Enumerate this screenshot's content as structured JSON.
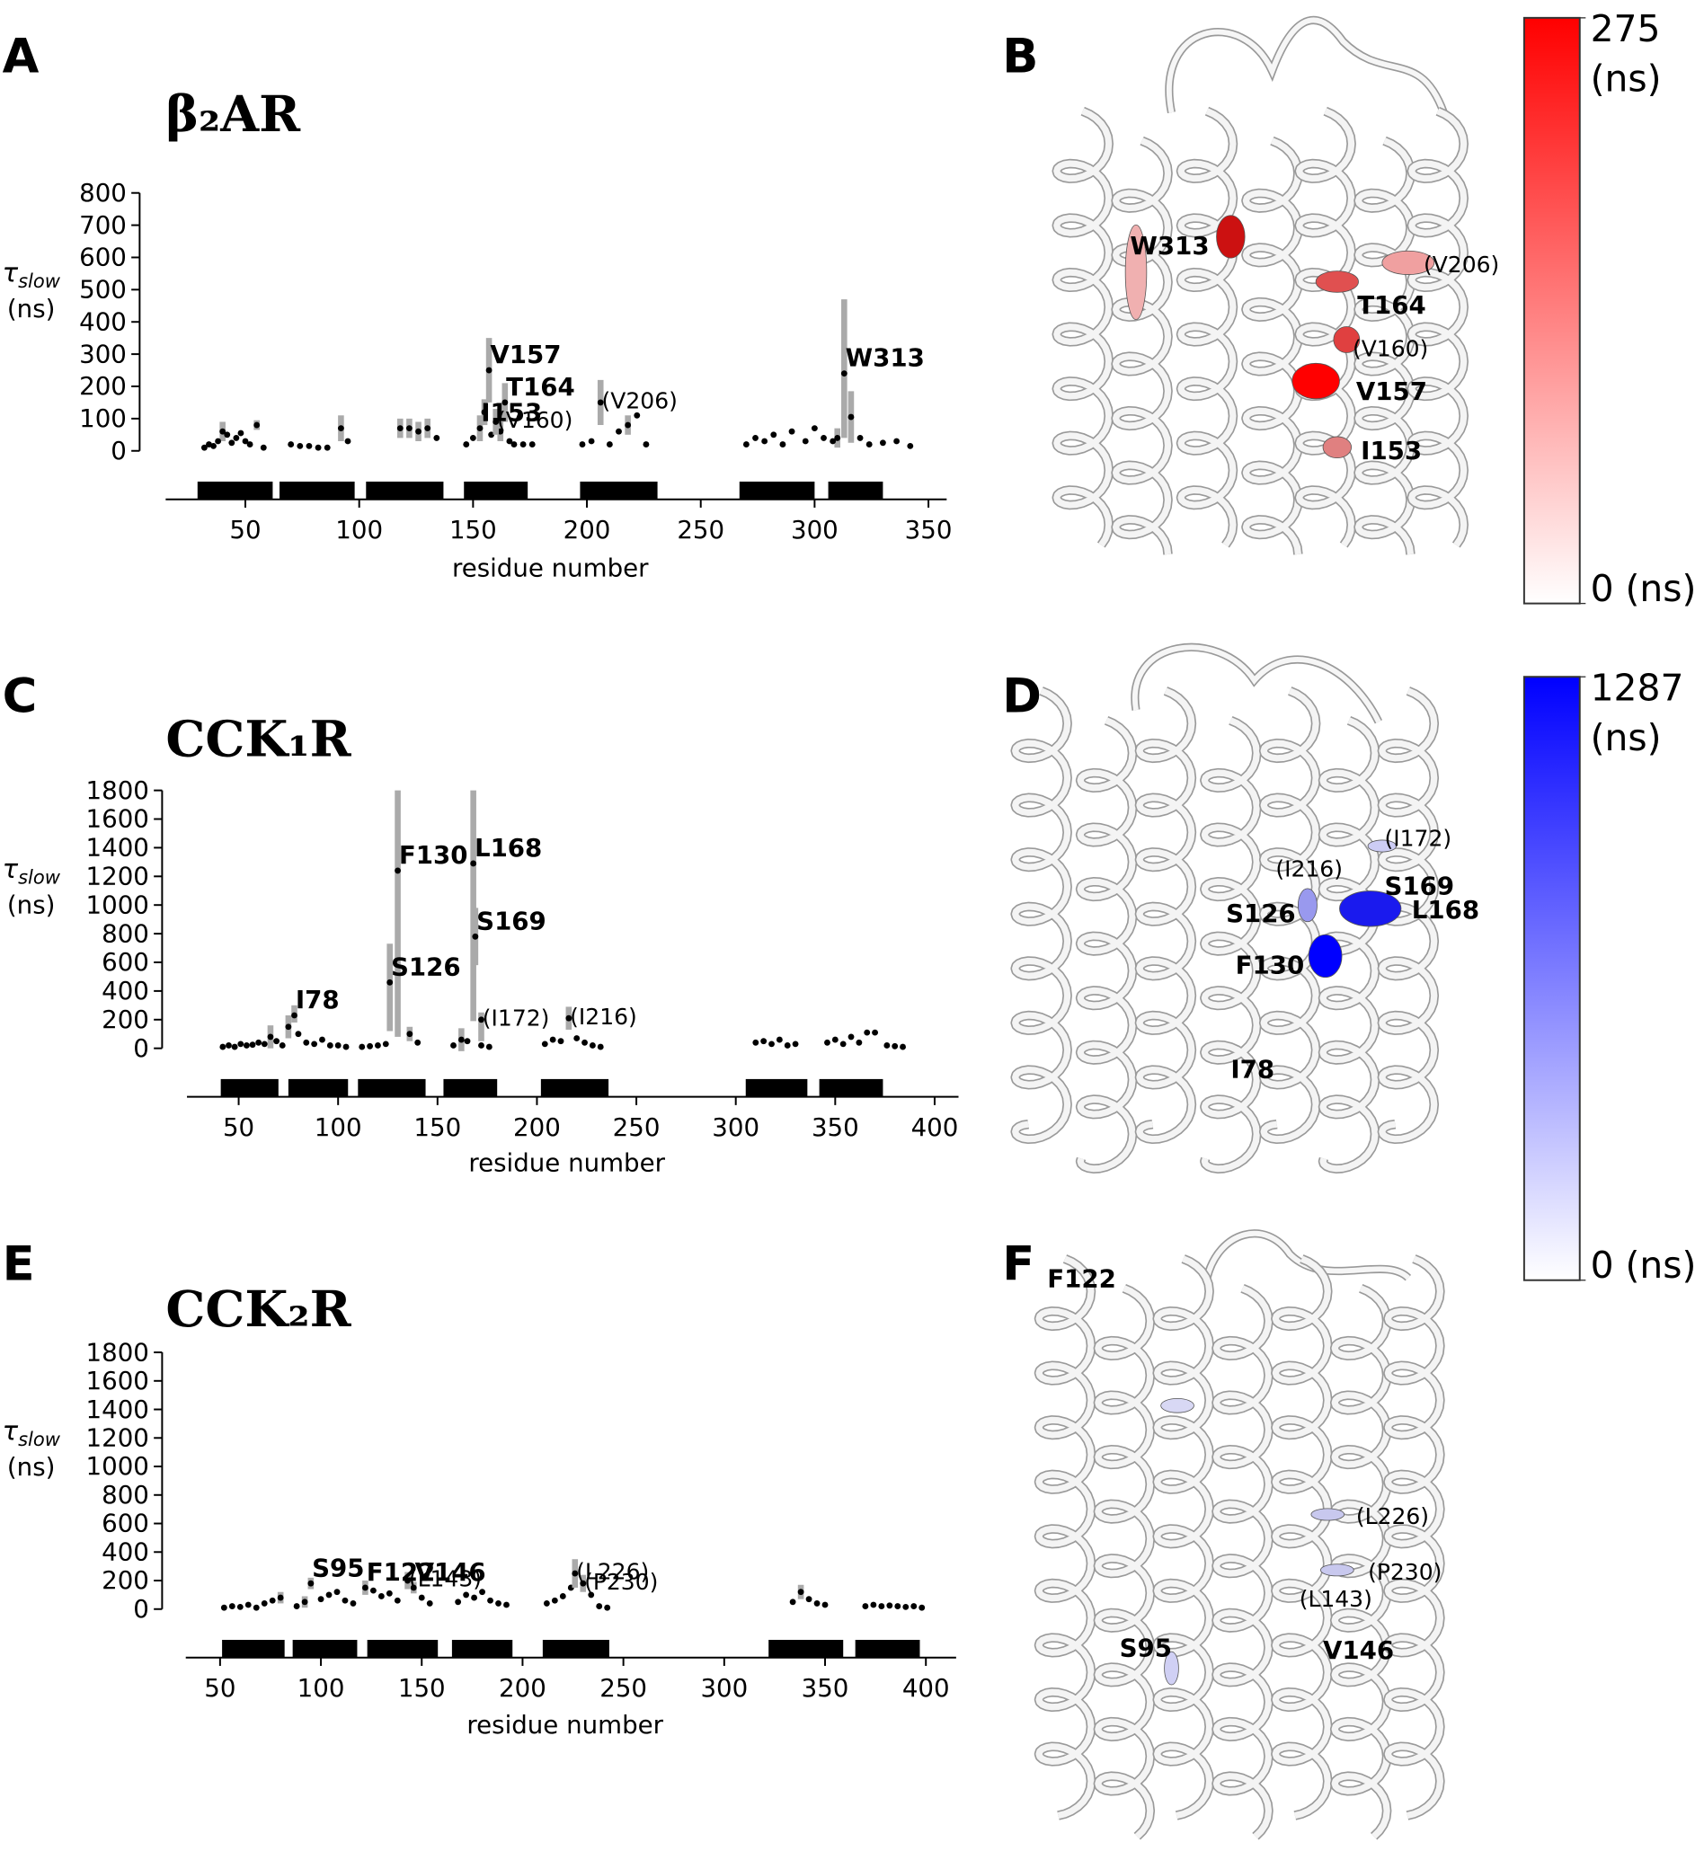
{
  "panels": [
    "A",
    "B",
    "C",
    "D",
    "E",
    "F"
  ],
  "chart_data": [
    {
      "type": "scatter",
      "title": "β₂AR",
      "ylabel_symbol": "τ",
      "ylabel_subscript": "slow",
      "ylabel_unit": "(ns)",
      "xlabel": "residue number",
      "xlim": [
        15,
        358
      ],
      "xticks": [
        50,
        100,
        150,
        200,
        250,
        300,
        350
      ],
      "ylim": [
        0,
        800
      ],
      "yticks": [
        0,
        100,
        200,
        300,
        400,
        500,
        600,
        700,
        800
      ],
      "color": "#000000",
      "error_color": "#aaaaaa",
      "helices": [
        [
          29,
          62
        ],
        [
          65,
          98
        ],
        [
          103,
          137
        ],
        [
          146,
          174
        ],
        [
          197,
          231
        ],
        [
          267,
          300
        ],
        [
          306,
          330
        ]
      ],
      "background": {
        "x": [
          32,
          34,
          36,
          38,
          40,
          42,
          44,
          46,
          48,
          50,
          52,
          55,
          58,
          70,
          74,
          78,
          82,
          86,
          92,
          95,
          118,
          122,
          126,
          130,
          134,
          147,
          150,
          155,
          158,
          162,
          166,
          168,
          172,
          176,
          198,
          202,
          210,
          214,
          218,
          222,
          226,
          270,
          274,
          278,
          282,
          286,
          290,
          296,
          300,
          304,
          308,
          310,
          316,
          320,
          324,
          330,
          336,
          342
        ],
        "y": [
          10,
          20,
          15,
          30,
          60,
          50,
          25,
          40,
          55,
          30,
          20,
          80,
          10,
          20,
          15,
          15,
          10,
          10,
          70,
          30,
          70,
          70,
          60,
          70,
          40,
          20,
          40,
          120,
          50,
          60,
          30,
          20,
          20,
          20,
          20,
          30,
          20,
          60,
          80,
          110,
          20,
          20,
          40,
          30,
          50,
          20,
          60,
          30,
          70,
          40,
          30,
          40,
          105,
          40,
          20,
          25,
          30,
          15
        ],
        "yerr": [
          0,
          0,
          0,
          0,
          30,
          0,
          0,
          0,
          0,
          0,
          0,
          15,
          0,
          0,
          0,
          0,
          0,
          0,
          40,
          0,
          30,
          30,
          30,
          30,
          0,
          0,
          0,
          40,
          0,
          30,
          0,
          0,
          0,
          0,
          0,
          0,
          0,
          0,
          30,
          0,
          0,
          0,
          0,
          0,
          0,
          0,
          0,
          0,
          0,
          0,
          0,
          30,
          80,
          0,
          0,
          0,
          0,
          0
        ]
      },
      "highlighted": {
        "x": [
          153,
          157,
          160,
          164,
          206,
          313
        ],
        "y": [
          70,
          250,
          90,
          150,
          150,
          240
        ],
        "yerr_low": [
          40,
          100,
          40,
          60,
          70,
          200
        ],
        "yerr_high": [
          40,
          100,
          40,
          60,
          70,
          230
        ],
        "labels": [
          "I153",
          "V157",
          "(V160)",
          "T164",
          "(V206)",
          "W313"
        ]
      }
    },
    {
      "type": "scatter",
      "title": "CCK₁R",
      "ylabel_symbol": "τ",
      "ylabel_subscript": "slow",
      "ylabel_unit": "(ns)",
      "xlabel": "residue number",
      "xlim": [
        24,
        412
      ],
      "xticks": [
        50,
        100,
        150,
        200,
        250,
        300,
        350,
        400
      ],
      "ylim": [
        0,
        1800
      ],
      "yticks": [
        0,
        200,
        400,
        600,
        800,
        1000,
        1200,
        1400,
        1600,
        1800
      ],
      "color": "#000000",
      "error_color": "#aaaaaa",
      "helices": [
        [
          41,
          70
        ],
        [
          75,
          105
        ],
        [
          110,
          144
        ],
        [
          153,
          180
        ],
        [
          202,
          236
        ],
        [
          305,
          336
        ],
        [
          342,
          374
        ]
      ],
      "background": {
        "x": [
          42,
          45,
          48,
          51,
          54,
          57,
          60,
          63,
          66,
          69,
          72,
          75,
          80,
          84,
          88,
          92,
          96,
          100,
          104,
          112,
          116,
          120,
          124,
          136,
          140,
          158,
          162,
          165,
          172,
          176,
          204,
          208,
          212,
          220,
          224,
          228,
          232,
          310,
          314,
          318,
          322,
          326,
          330,
          346,
          350,
          354,
          358,
          362,
          366,
          370,
          376,
          380,
          384
        ],
        "y": [
          10,
          20,
          10,
          30,
          20,
          25,
          40,
          30,
          80,
          50,
          20,
          150,
          100,
          40,
          30,
          60,
          20,
          20,
          10,
          10,
          15,
          20,
          30,
          100,
          40,
          20,
          60,
          50,
          20,
          10,
          30,
          60,
          50,
          70,
          40,
          20,
          10,
          40,
          50,
          30,
          60,
          20,
          30,
          40,
          60,
          30,
          80,
          40,
          110,
          110,
          20,
          15,
          10
        ],
        "yerr": [
          0,
          0,
          0,
          0,
          0,
          0,
          0,
          0,
          80,
          0,
          0,
          80,
          0,
          0,
          0,
          0,
          0,
          0,
          0,
          0,
          0,
          0,
          0,
          50,
          0,
          0,
          80,
          0,
          0,
          0,
          0,
          0,
          0,
          0,
          0,
          0,
          0,
          0,
          0,
          0,
          0,
          0,
          0,
          0,
          0,
          0,
          0,
          0,
          0,
          0,
          0,
          0,
          0
        ]
      },
      "highlighted": {
        "x": [
          78,
          126,
          130,
          168,
          169,
          172,
          216
        ],
        "y": [
          230,
          460,
          1240,
          1290,
          780,
          200,
          210
        ],
        "yerr_low": [
          50,
          340,
          1160,
          1100,
          200,
          150,
          80
        ],
        "yerr_high": [
          70,
          270,
          560,
          510,
          200,
          50,
          80
        ],
        "labels": [
          "I78",
          "S126",
          "F130",
          "L168",
          "S169",
          "(I172)",
          "(I216)"
        ]
      }
    },
    {
      "type": "scatter",
      "title": "CCK₂R",
      "ylabel_symbol": "τ",
      "ylabel_subscript": "slow",
      "ylabel_unit": "(ns)",
      "xlabel": "residue number",
      "xlim": [
        33,
        415
      ],
      "xticks": [
        50,
        100,
        150,
        200,
        250,
        300,
        350,
        400
      ],
      "ylim": [
        0,
        1800
      ],
      "yticks": [
        0,
        200,
        400,
        600,
        800,
        1000,
        1200,
        1400,
        1600,
        1800
      ],
      "color": "#000000",
      "error_color": "#aaaaaa",
      "helices": [
        [
          51,
          82
        ],
        [
          86,
          118
        ],
        [
          123,
          158
        ],
        [
          165,
          195
        ],
        [
          210,
          243
        ],
        [
          322,
          359
        ],
        [
          365,
          397
        ]
      ],
      "background": {
        "x": [
          52,
          56,
          60,
          64,
          68,
          72,
          76,
          80,
          88,
          92,
          100,
          104,
          108,
          112,
          116,
          126,
          130,
          134,
          138,
          150,
          154,
          168,
          172,
          176,
          180,
          184,
          188,
          192,
          212,
          216,
          220,
          224,
          234,
          238,
          242,
          334,
          338,
          342,
          346,
          350,
          370,
          374,
          378,
          382,
          386,
          390,
          394,
          398
        ],
        "y": [
          10,
          20,
          15,
          30,
          10,
          40,
          60,
          80,
          20,
          50,
          70,
          100,
          120,
          60,
          40,
          130,
          90,
          110,
          60,
          80,
          40,
          50,
          100,
          80,
          120,
          60,
          40,
          30,
          40,
          60,
          90,
          150,
          100,
          20,
          10,
          50,
          120,
          70,
          40,
          30,
          20,
          30,
          20,
          25,
          20,
          15,
          20,
          10
        ],
        "yerr": [
          0,
          0,
          0,
          0,
          0,
          0,
          0,
          40,
          0,
          40,
          0,
          0,
          0,
          0,
          0,
          0,
          0,
          0,
          0,
          0,
          0,
          0,
          0,
          0,
          0,
          0,
          0,
          0,
          0,
          0,
          0,
          0,
          0,
          0,
          0,
          0,
          50,
          0,
          0,
          0,
          0,
          0,
          0,
          0,
          0,
          0,
          0,
          0
        ]
      },
      "highlighted": {
        "x": [
          95,
          122,
          143,
          146,
          226,
          230
        ],
        "y": [
          180,
          150,
          200,
          150,
          250,
          180
        ],
        "yerr_low": [
          40,
          50,
          60,
          40,
          100,
          60
        ],
        "yerr_high": [
          40,
          50,
          60,
          40,
          100,
          60
        ],
        "labels": [
          "S95",
          "F122",
          "(L143)",
          "V146",
          "(L226)",
          "(P230)"
        ]
      }
    }
  ],
  "structures": [
    {
      "labels": [
        "W313",
        "(V206)",
        "T164",
        "(V160)",
        "V157",
        "I153"
      ]
    },
    {
      "labels": [
        "(I172)",
        "(I216)",
        "S169",
        "L168",
        "S126",
        "F130",
        "I78"
      ]
    },
    {
      "labels": [
        "F122",
        "(L226)",
        "(P230)",
        "(L143)",
        "S95",
        "V146"
      ]
    }
  ],
  "colorbars": [
    {
      "color": "#ff0000",
      "lim": [
        0,
        275
      ],
      "ticks": [
        275,
        {
          "value": 0,
          "label": "0 (ns)"
        }
      ],
      "unit": "(ns)"
    },
    {
      "color": "#0000ff",
      "lim": [
        0,
        1287
      ],
      "ticks": [
        1287,
        {
          "value": 0,
          "label": "0 (ns)"
        }
      ],
      "unit": "(ns)"
    }
  ]
}
